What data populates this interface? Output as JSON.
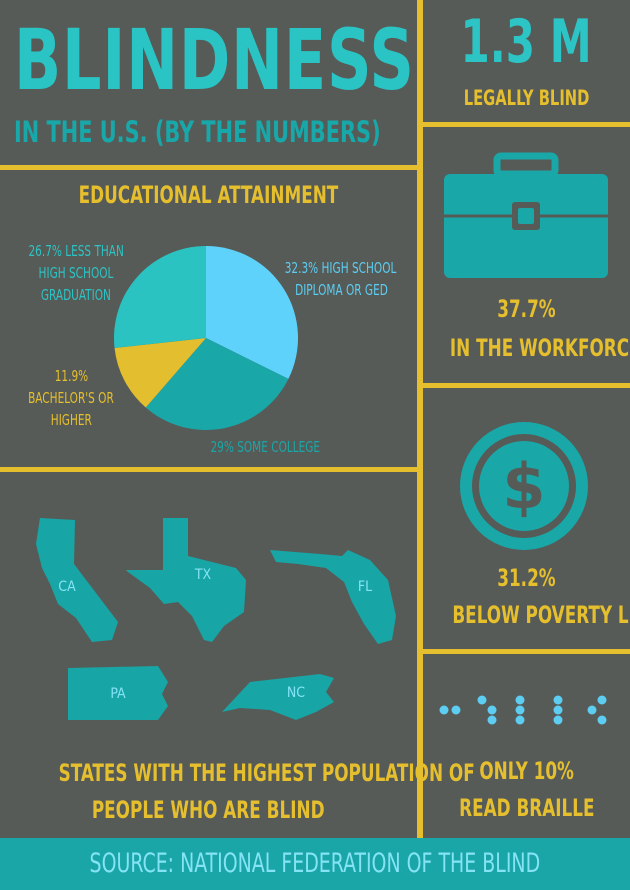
{
  "header": {
    "title": "BLINDNESS",
    "subtitle": "IN THE U.S. (BY THE NUMBERS)"
  },
  "stats": {
    "legally_blind_value": "1.3 M",
    "legally_blind_label": "LEGALLY BLIND",
    "workforce_value": "37.7%",
    "workforce_label": "IN THE WORKFORCE",
    "poverty_value": "31.2%",
    "poverty_label": "BELOW POVERTY LINE",
    "braille_value": "ONLY 10%",
    "braille_label": "READ BRAILLE"
  },
  "education": {
    "heading": "EDUCATIONAL ATTAINMENT",
    "label_less_than_hs_1": "26.7% LESS THAN",
    "label_less_than_hs_2": "HIGH SCHOOL",
    "label_less_than_hs_3": "GRADUATION",
    "label_hs_1": "32.3% HIGH SCHOOL",
    "label_hs_2": "DIPLOMA OR GED",
    "label_bach_1": "11.9%",
    "label_bach_2": "BACHELOR'S OR",
    "label_bach_3": "HIGHER",
    "label_college": "29% SOME COLLEGE"
  },
  "chart_data": {
    "type": "pie",
    "title": "EDUCATIONAL ATTAINMENT",
    "slices": [
      {
        "label": "High school diploma or GED",
        "value": 32.3,
        "color": "#5fd2fb"
      },
      {
        "label": "Some college",
        "value": 29.0,
        "color": "#1aa7a8"
      },
      {
        "label": "Bachelor's or higher",
        "value": 11.9,
        "color": "#e3be2e"
      },
      {
        "label": "Less than high school graduation",
        "value": 26.7,
        "color": "#2ac3c1"
      }
    ]
  },
  "states": {
    "heading_line1": "STATES WITH THE HIGHEST POPULATION OF",
    "heading_line2": "PEOPLE WHO ARE BLIND",
    "ca": "CA",
    "tx": "TX",
    "fl": "FL",
    "pa": "PA",
    "nc": "NC"
  },
  "footer": {
    "source": "SOURCE: NATIONAL FEDERATION OF THE BLIND"
  },
  "colors": {
    "background": "#565b57",
    "accent_yellow": "#e6bf2e",
    "accent_teal": "#29c4c3",
    "light_blue": "#5dcdf2"
  }
}
